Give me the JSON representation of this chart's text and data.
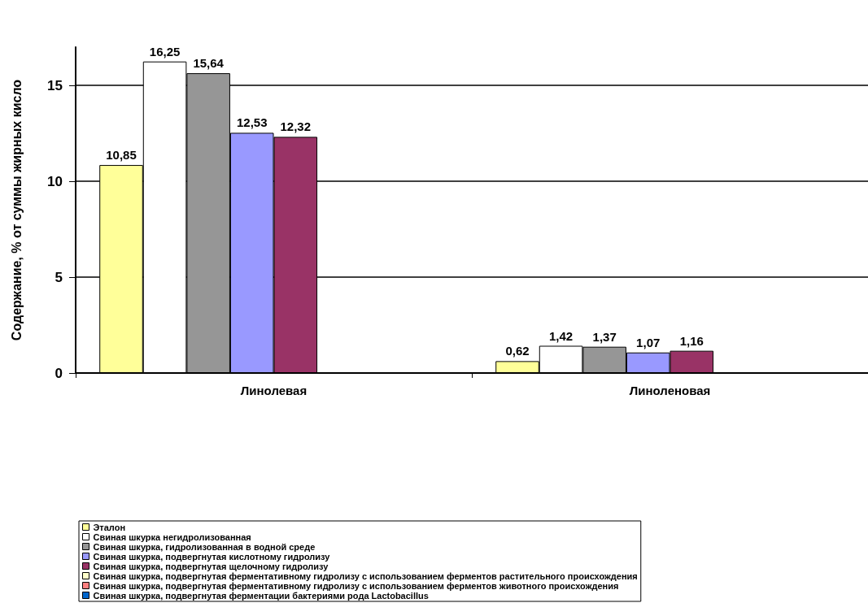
{
  "chart_data": {
    "type": "bar",
    "ylabel": "Содержание, % от суммы жирных кисло",
    "categories": [
      "Линолевая",
      "Линоленовая"
    ],
    "series": [
      {
        "name": "Эталон",
        "color": "#ffff99",
        "values": [
          10.85,
          0.62
        ],
        "value_labels": [
          "10,85",
          "0,62"
        ]
      },
      {
        "name": "Свиная шкурка негидролизованная",
        "color": "#ffffff",
        "values": [
          16.25,
          1.42
        ],
        "value_labels": [
          "16,25",
          "1,42"
        ]
      },
      {
        "name": "Свиная шкурка, гидролизованная в водной среде",
        "color": "#969696",
        "values": [
          15.64,
          1.37
        ],
        "value_labels": [
          "15,64",
          "1,37"
        ]
      },
      {
        "name": "Свиная шкурка, подвергнутая кислотному гидролизу",
        "color": "#9999ff",
        "values": [
          12.53,
          1.07
        ],
        "value_labels": [
          "12,53",
          "1,07"
        ]
      },
      {
        "name": "Свиная шкурка, подвергнутая щелочному гидролизу",
        "color": "#993366",
        "values": [
          12.32,
          1.16
        ],
        "value_labels": [
          "12,32",
          "1,16"
        ]
      },
      {
        "name": "Свиная шкурка, подвергнутая ферментативному гидролизу с использованием ферментов растительного происхождения",
        "color": "#ffffcc",
        "values": [
          null,
          null
        ]
      },
      {
        "name": "Свиная шкурка, подвергнутая ферментативному гидролизу с использованием ферментов животного происхождения",
        "color": "#ff8080",
        "values": [
          null,
          null
        ]
      },
      {
        "name": "Свиная шкурка, подвергнутая ферментации бактериями рода Lactobacillus",
        "color": "#0066cc",
        "values": [
          null,
          null
        ]
      }
    ],
    "ylim": [
      0,
      17
    ],
    "yticks": [
      0,
      5,
      10,
      15
    ],
    "grid": "y",
    "legend": "bottom"
  }
}
